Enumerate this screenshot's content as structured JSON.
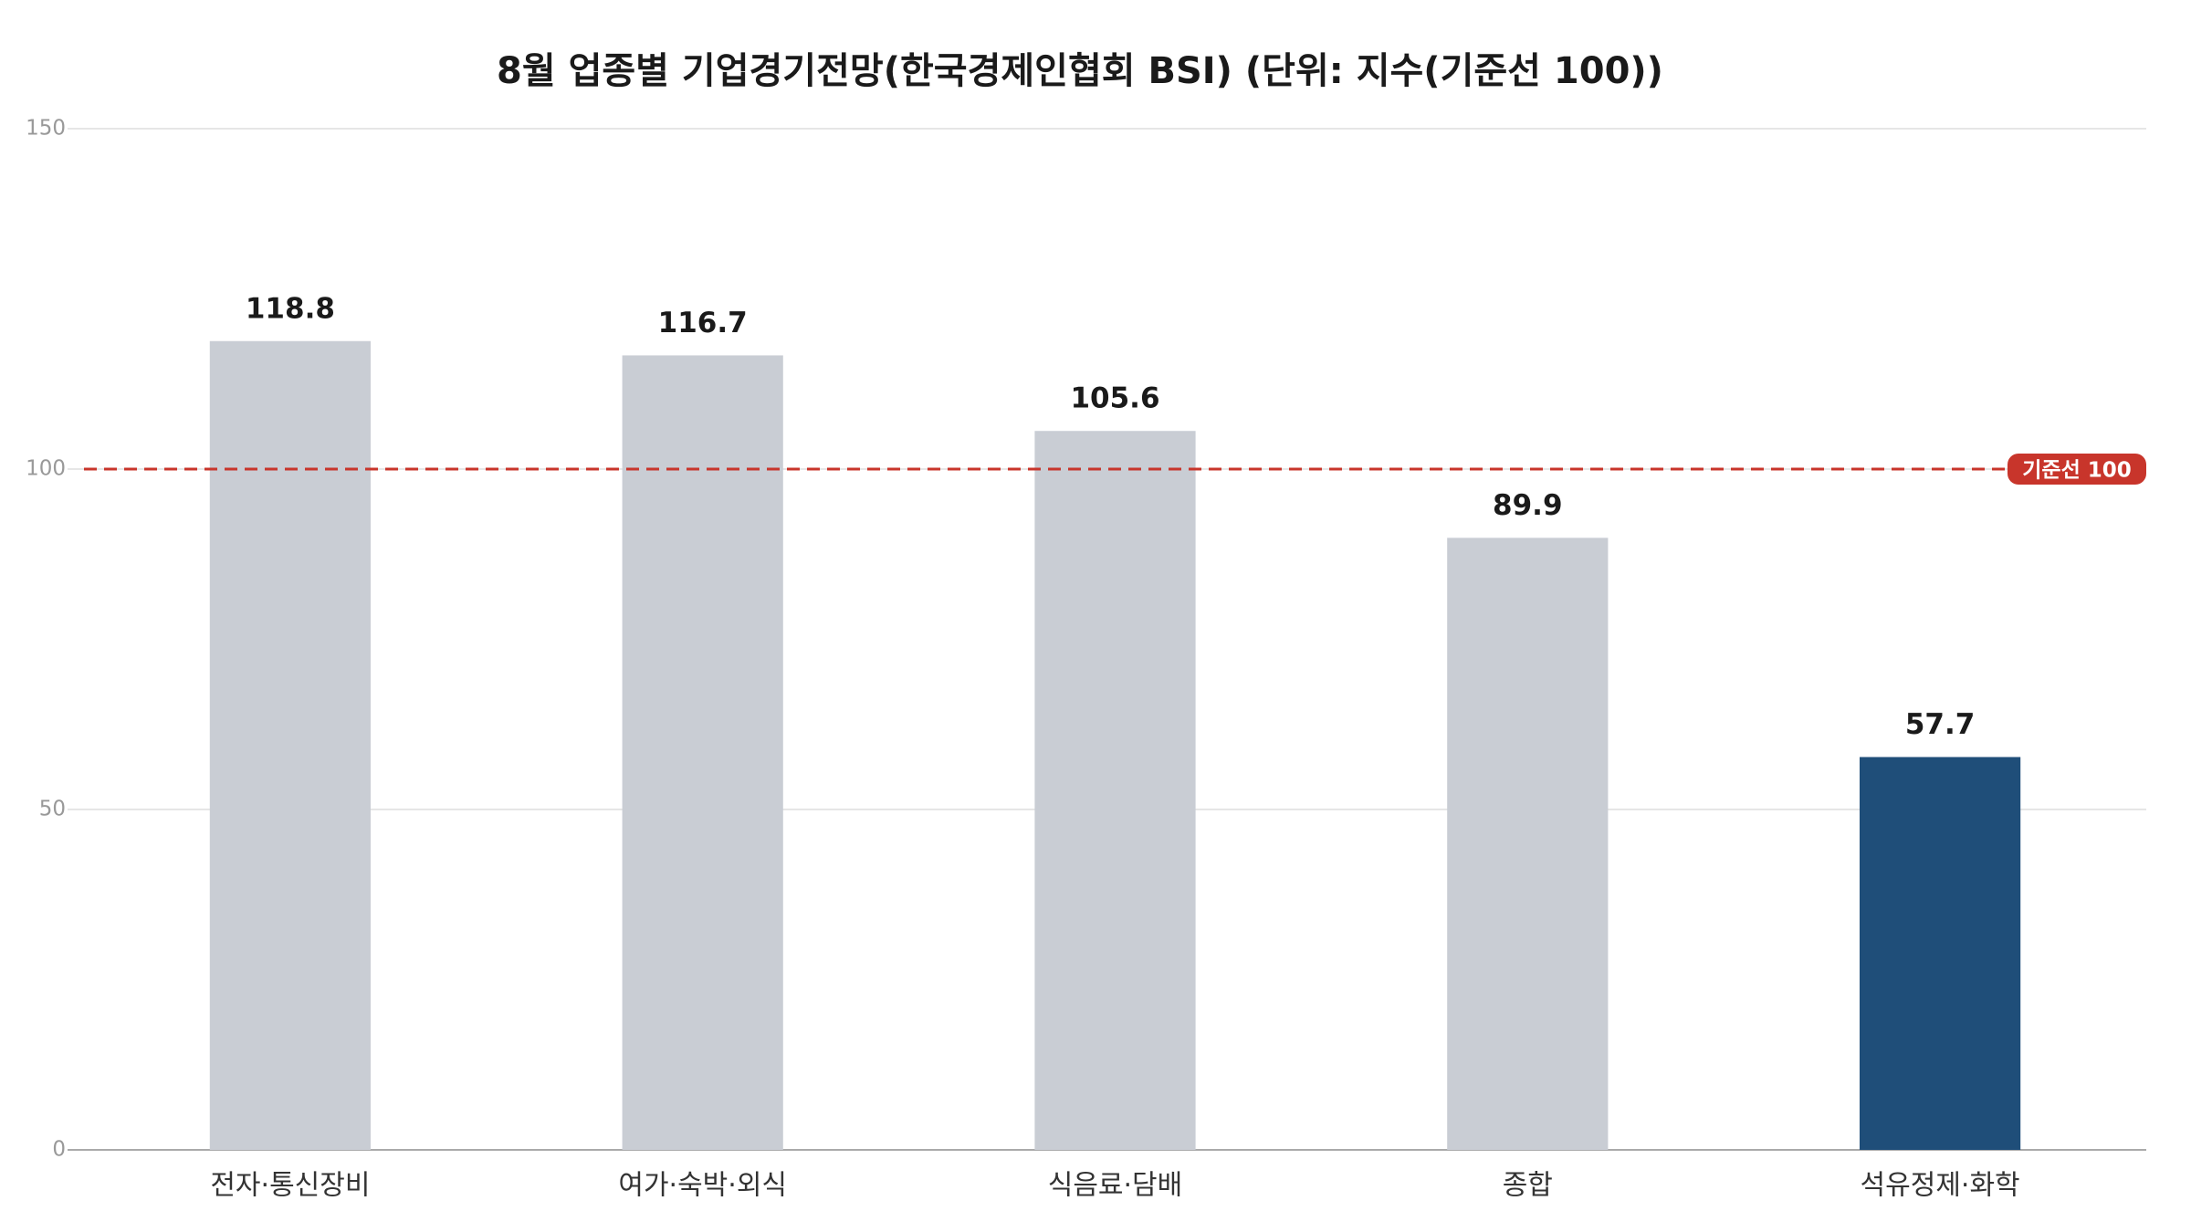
{
  "chart_data": {
    "type": "bar",
    "title": "8월 업종별 기업경기전망(한국경제인협회 BSI) (단위: 지수(기준선 100))",
    "categories": [
      "전자·통신장비",
      "여가·숙박·외식",
      "식음료·담배",
      "종합",
      "석유정제·화학"
    ],
    "values": [
      118.8,
      116.7,
      105.6,
      89.9,
      57.7
    ],
    "colors": [
      "#c9cdd4",
      "#c9cdd4",
      "#c9cdd4",
      "#c9cdd4",
      "#1f4e79"
    ],
    "ylim": [
      0,
      150
    ],
    "yticks": [
      0,
      50,
      100,
      150
    ],
    "grid": true,
    "reference_line": {
      "value": 100,
      "label": "기준선 100",
      "color": "#c8352b"
    }
  }
}
